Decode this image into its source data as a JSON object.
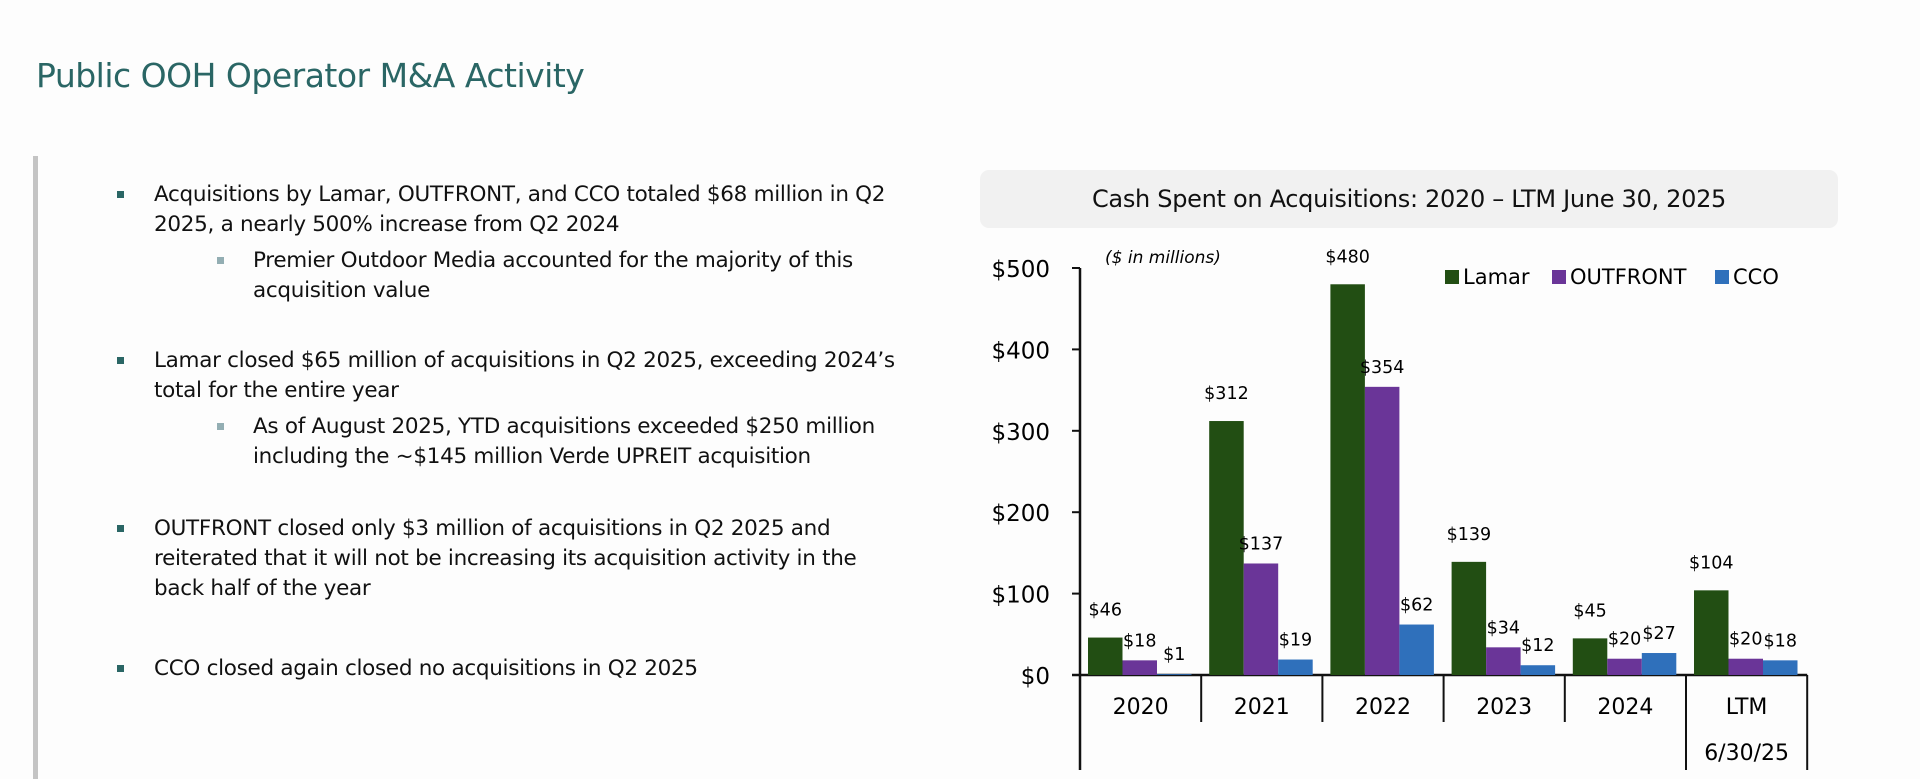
{
  "page": {
    "title": "Public OOH Operator M&A Activity"
  },
  "bullets": [
    {
      "level": 1,
      "text_lines": [
        "Acquisitions by Lamar, OUTFRONT, and CCO totaled $68 million in Q2",
        "2025, a nearly 500% increase from Q2 2024"
      ]
    },
    {
      "level": 2,
      "text_lines": [
        "Premier Outdoor Media accounted for the majority of this",
        "acquisition value"
      ]
    },
    {
      "level": 1,
      "text_lines": [
        "Lamar closed $65 million of acquisitions in Q2 2025, exceeding 2024’s",
        "total for the entire year"
      ]
    },
    {
      "level": 2,
      "text_lines": [
        "As of August 2025, YTD acquisitions exceeded $250 million",
        "including the ~$145 million Verde UPREIT acquisition"
      ]
    },
    {
      "level": 1,
      "text_lines": [
        "OUTFRONT closed only $3 million of acquisitions in Q2 2025 and",
        "reiterated that it will not be increasing its acquisition activity in the",
        "back half of the year"
      ]
    },
    {
      "level": 1,
      "text_lines": [
        "CCO closed again closed no acquisitions in Q2 2025"
      ]
    }
  ],
  "chart_data": {
    "type": "bar",
    "title": "Cash Spent on Acquisitions: 2020 – LTM June 30, 2025",
    "subtitle": "($ in millions)",
    "xlabel": "",
    "ylabel": "",
    "ylim": [
      0,
      500
    ],
    "yticks": [
      0,
      100,
      200,
      300,
      400,
      500
    ],
    "ytick_labels": [
      "$0",
      "$100",
      "$200",
      "$300",
      "$400",
      "$500"
    ],
    "categories": [
      "2020",
      "2021",
      "2022",
      "2023",
      "2024",
      "LTM"
    ],
    "category_sublabels": [
      "",
      "",
      "",
      "",
      "",
      "6/30/25"
    ],
    "series": [
      {
        "name": "Lamar",
        "color": "#224e13",
        "values": [
          46,
          312,
          480,
          139,
          45,
          104
        ],
        "labels": [
          "$46",
          "$312",
          "$480",
          "$139",
          "$45",
          "$104"
        ]
      },
      {
        "name": "OUTFRONT",
        "color": "#6a3598",
        "values": [
          18,
          137,
          354,
          34,
          20,
          20
        ],
        "labels": [
          "$18",
          "$137",
          "$354",
          "$34",
          "$20",
          "$20"
        ]
      },
      {
        "name": "CCO",
        "color": "#2f70bb",
        "values": [
          1,
          19,
          62,
          12,
          27,
          18
        ],
        "labels": [
          "$1",
          "$19",
          "$62",
          "$12",
          "$27",
          "$18"
        ]
      }
    ],
    "legend_position": "top-right",
    "grid": false
  },
  "colors": {
    "title": "#2a6665",
    "bullet_primary": "#2a6665",
    "bullet_secondary": "#93aeb3",
    "chart_title_bg": "#f1f1f1"
  }
}
